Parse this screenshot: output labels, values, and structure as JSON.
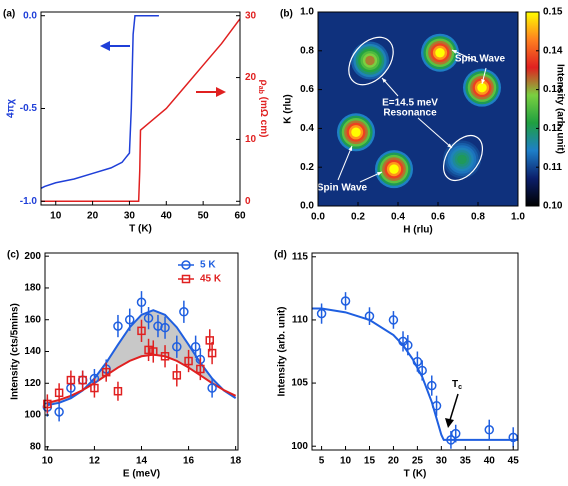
{
  "chart_data": [
    {
      "type": "line",
      "panel_label": "(a)",
      "xlabel": "T (K)",
      "ylabel": "4πχ",
      "y2label": {
        "main": "ρ",
        "sub": "ab",
        "rest": " (mΩ cm)"
      },
      "xlim": [
        6,
        60
      ],
      "xticks": [
        10,
        20,
        30,
        40,
        50,
        60
      ],
      "ylim": [
        -1.02,
        0.02
      ],
      "yticks": [
        {
          "value": -1,
          "label": "-1.0"
        },
        -0.5,
        {
          "value": 0,
          "label": "0.0"
        }
      ],
      "y2lim": [
        -0.6,
        30.6
      ],
      "y2ticks": [
        0,
        10,
        20,
        30
      ],
      "series": [
        {
          "color": "#1f3fd8",
          "x": [
            6,
            7,
            10,
            15,
            20,
            25,
            28,
            30,
            30.5,
            31,
            31.5,
            32,
            38
          ],
          "values": [
            -0.93,
            -0.92,
            -0.9,
            -0.88,
            -0.85,
            -0.82,
            -0.79,
            -0.74,
            -0.5,
            -0.1,
            0.0,
            0.0,
            0.0
          ]
        },
        {
          "color": "#e02020",
          "axis": "y2",
          "x": [
            6,
            20,
            32.5,
            32.8,
            33,
            35,
            40,
            45,
            50,
            55,
            60
          ],
          "values": [
            0,
            0,
            0,
            5,
            11.5,
            12.5,
            15,
            18.5,
            22,
            25.5,
            29.5
          ]
        }
      ]
    },
    {
      "type": "heatmap",
      "panel_label": "(b)",
      "xlabel": "H (rlu)",
      "ylabel": "K (rlu)",
      "xlim": [
        0,
        1
      ],
      "xticks": [
        {
          "value": 0,
          "label": "0.0"
        },
        0.2,
        0.4,
        0.6,
        0.8,
        {
          "value": 1,
          "label": "1.0"
        }
      ],
      "ylim": [
        0,
        1
      ],
      "yticks": [
        {
          "value": 0,
          "label": "0.0"
        },
        0.2,
        0.4,
        0.6,
        0.8,
        {
          "value": 1,
          "label": "1.0"
        }
      ],
      "clim": [
        0.1,
        0.15
      ],
      "cticks": [
        {
          "value": 0.1,
          "label": "0.10"
        },
        0.11,
        0.12,
        0.13,
        0.14,
        0.15
      ],
      "clabel": "Intensity (arb. unit)",
      "colormap": [
        "#000000",
        "#0b1f6b",
        "#1e7fc8",
        "#1fa040",
        "#7ad040",
        "#e02020",
        "#ff8020",
        "#ffff00"
      ],
      "spots": {
        "x": [
          0.26,
          0.61,
          0.82,
          0.19,
          0.38,
          0.72
        ],
        "y": [
          0.75,
          0.79,
          0.61,
          0.38,
          0.19,
          0.24
        ],
        "values": [
          0.132,
          0.15,
          0.15,
          0.15,
          0.15,
          0.12
        ]
      },
      "annotations": [
        "Spin Wave",
        "Spin Wave",
        "E=14.5 meV",
        "Resonance"
      ]
    },
    {
      "type": "scatter",
      "panel_label": "(c)",
      "xlabel": "E (meV)",
      "ylabel": "Intensity (cts/5mins)",
      "xlim": [
        9.9,
        18.1
      ],
      "xticks": [
        10,
        12,
        14,
        16,
        18
      ],
      "ylim": [
        78,
        202
      ],
      "yticks": [
        80,
        100,
        120,
        140,
        160,
        180,
        200
      ],
      "legend": "upper right",
      "fill_color": "#c8c8c8",
      "series": [
        {
          "name": "5 K",
          "color": "#1f5fe0",
          "marker": "circle",
          "x": [
            10,
            10.5,
            11,
            11.5,
            12,
            12.5,
            13,
            13.5,
            14,
            14.3,
            14.7,
            15,
            15.5,
            15.8,
            16.3,
            16.5,
            17
          ],
          "values": [
            105,
            102,
            117,
            122,
            123,
            129,
            156,
            160,
            171,
            161,
            156,
            155,
            143,
            165,
            143,
            135,
            117
          ],
          "errors": [
            6,
            6,
            6,
            6,
            6,
            6,
            7,
            7,
            7,
            7,
            7,
            7,
            7,
            7,
            7,
            7,
            6
          ]
        },
        {
          "name": "45 K",
          "color": "#e02020",
          "marker": "square",
          "x": [
            10,
            10.5,
            11,
            11.5,
            12,
            12.5,
            13,
            14,
            14.3,
            14.5,
            15,
            15.5,
            16,
            16.5,
            16.9,
            17
          ],
          "values": [
            107,
            114,
            122,
            122,
            117,
            127,
            115,
            153,
            141,
            140,
            137,
            125,
            134,
            129,
            147,
            139
          ],
          "errors": [
            6,
            6,
            6,
            6,
            6,
            6,
            6,
            7,
            7,
            7,
            7,
            7,
            7,
            7,
            7,
            7
          ]
        }
      ],
      "fits": [
        {
          "color": "#1f5fe0",
          "x": [
            10,
            10.5,
            11,
            11.5,
            12,
            12.5,
            13,
            13.5,
            14,
            14.5,
            15,
            15.5,
            16,
            16.5,
            17,
            17.5,
            18
          ],
          "values": [
            106.2,
            107.7,
            110.6,
            115.5,
            123,
            132.9,
            144.3,
            155.2,
            163.1,
            166,
            163.1,
            155.2,
            144.3,
            132.9,
            123,
            115.5,
            110.6
          ]
        },
        {
          "color": "#e02020",
          "x": [
            10,
            10.5,
            11,
            11.5,
            12,
            12.5,
            13,
            13.5,
            14,
            14.5,
            15,
            15.5,
            16,
            16.5,
            17,
            17.5,
            18
          ],
          "values": [
            107.6,
            109.5,
            112.1,
            115.7,
            120.1,
            125,
            129.9,
            134.1,
            137,
            138,
            137,
            134.1,
            129.9,
            125,
            120.1,
            115.7,
            112.1
          ]
        }
      ]
    },
    {
      "type": "scatter",
      "panel_label": "(d)",
      "xlabel": "T (K)",
      "ylabel": "Intensity (arb. unit)",
      "xlim": [
        3,
        46
      ],
      "xticks": [
        5,
        10,
        15,
        20,
        25,
        30,
        35,
        40,
        45
      ],
      "ylim": [
        99.7,
        115.3
      ],
      "yticks": [
        100,
        105,
        110,
        115
      ],
      "annotation": {
        "main": "T",
        "sub": "c"
      },
      "series": [
        {
          "color": "#1f5fe0",
          "marker": "circle",
          "x": [
            5,
            10,
            15,
            20,
            22,
            23,
            25,
            26,
            28,
            29,
            32,
            33,
            40,
            45
          ],
          "values": [
            110.5,
            111.5,
            110.3,
            110,
            108.3,
            108,
            106.7,
            106,
            104.8,
            103.2,
            100.5,
            101,
            101.3,
            100.7
          ],
          "errors": [
            0.8,
            0.7,
            0.7,
            0.7,
            0.8,
            0.8,
            0.8,
            0.8,
            0.8,
            0.8,
            0.7,
            0.7,
            0.8,
            0.8
          ]
        }
      ],
      "fits": [
        {
          "color": "#1f5fe0",
          "x": [
            3,
            5,
            10,
            15,
            20,
            22,
            24,
            26,
            28,
            29,
            30,
            30.5,
            31,
            46
          ],
          "values": [
            110.9,
            110.9,
            110.6,
            110,
            108.8,
            108,
            106.9,
            105.5,
            103.5,
            102.2,
            100.9,
            100.5,
            100.5,
            100.5
          ]
        }
      ]
    }
  ]
}
